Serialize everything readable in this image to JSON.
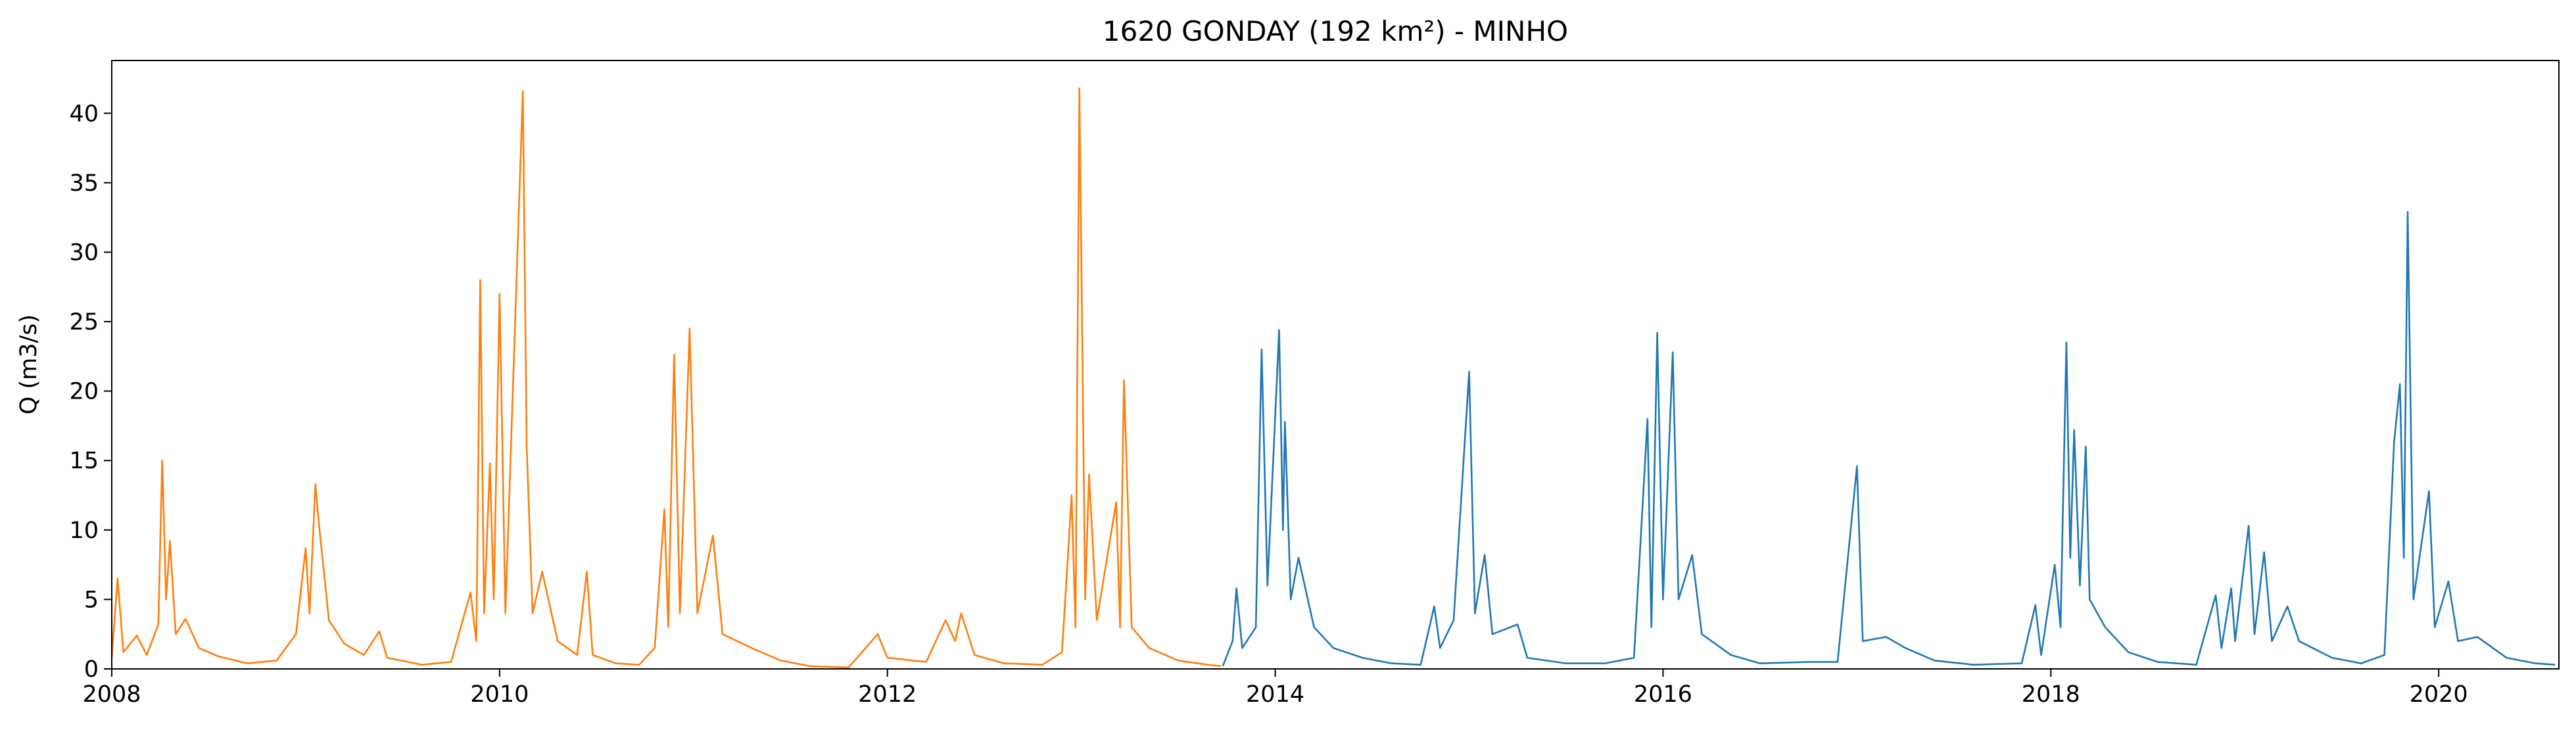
{
  "chart_data": {
    "type": "line",
    "title": "1620 GONDAY (192 km²) - MINHO",
    "ylabel": "Q (m3/s)",
    "xlim": [
      2008,
      2020.62
    ],
    "xticks": [
      2008,
      2010,
      2012,
      2014,
      2016,
      2018,
      2020
    ],
    "ylim": [
      0,
      43.8
    ],
    "yticks": [
      0,
      5,
      10,
      15,
      20,
      25,
      30,
      35,
      40
    ],
    "series": [
      {
        "color": "#ff7f0e",
        "x": [
          2008.0,
          2008.03,
          2008.06,
          2008.13,
          2008.18,
          2008.24,
          2008.26,
          2008.28,
          2008.3,
          2008.33,
          2008.38,
          2008.45,
          2008.55,
          2008.7,
          2008.85,
          2008.95,
          2009.0,
          2009.02,
          2009.05,
          2009.07,
          2009.12,
          2009.2,
          2009.3,
          2009.38,
          2009.42,
          2009.6,
          2009.75,
          2009.85,
          2009.88,
          2009.9,
          2009.92,
          2009.95,
          2009.97,
          2010.0,
          2010.03,
          2010.12,
          2010.14,
          2010.17,
          2010.22,
          2010.3,
          2010.4,
          2010.45,
          2010.48,
          2010.6,
          2010.72,
          2010.8,
          2010.85,
          2010.87,
          2010.9,
          2010.93,
          2010.98,
          2011.02,
          2011.1,
          2011.15,
          2011.3,
          2011.45,
          2011.6,
          2011.8,
          2011.95,
          2012.0,
          2012.2,
          2012.3,
          2012.35,
          2012.38,
          2012.45,
          2012.6,
          2012.8,
          2012.9,
          2012.95,
          2012.97,
          2012.99,
          2013.02,
          2013.04,
          2013.08,
          2013.18,
          2013.2,
          2013.22,
          2013.26,
          2013.35,
          2013.5,
          2013.65,
          2013.72
        ],
        "values": [
          0.8,
          6.5,
          1.2,
          2.4,
          1.0,
          3.2,
          15.0,
          5,
          9.2,
          2.5,
          3.6,
          1.5,
          0.9,
          0.4,
          0.6,
          2.5,
          8.7,
          4,
          13.3,
          10.2,
          3.5,
          1.8,
          1.0,
          2.7,
          0.8,
          0.3,
          0.5,
          5.5,
          2,
          28.0,
          4,
          14.8,
          5,
          27.0,
          4,
          41.6,
          16,
          4,
          7.0,
          2.0,
          1.0,
          7.0,
          1,
          0.4,
          0.3,
          1.5,
          11.5,
          3,
          22.6,
          4,
          24.5,
          4,
          9.6,
          2.5,
          1.5,
          0.6,
          0.2,
          0.1,
          2.5,
          0.8,
          0.5,
          3.5,
          2,
          4.0,
          1.0,
          0.4,
          0.3,
          1.2,
          12.5,
          3,
          41.8,
          5,
          14.0,
          3.5,
          12.0,
          3,
          20.8,
          3,
          1.5,
          0.6,
          0.3,
          0.2
        ]
      },
      {
        "color": "#1f77b4",
        "x": [
          2013.73,
          2013.78,
          2013.8,
          2013.83,
          2013.9,
          2013.93,
          2013.96,
          2014.02,
          2014.04,
          2014.05,
          2014.08,
          2014.12,
          2014.2,
          2014.3,
          2014.45,
          2014.6,
          2014.75,
          2014.82,
          2014.85,
          2014.92,
          2015.0,
          2015.03,
          2015.08,
          2015.12,
          2015.25,
          2015.3,
          2015.5,
          2015.7,
          2015.85,
          2015.92,
          2015.94,
          2015.97,
          2016.0,
          2016.05,
          2016.08,
          2016.15,
          2016.2,
          2016.35,
          2016.5,
          2016.75,
          2016.9,
          2017.0,
          2017.03,
          2017.15,
          2017.25,
          2017.4,
          2017.6,
          2017.85,
          2017.92,
          2017.95,
          2018.02,
          2018.05,
          2018.08,
          2018.1,
          2018.12,
          2018.15,
          2018.18,
          2018.2,
          2018.28,
          2018.4,
          2018.55,
          2018.75,
          2018.85,
          2018.88,
          2018.93,
          2018.95,
          2019.02,
          2019.05,
          2019.1,
          2019.14,
          2019.22,
          2019.28,
          2019.45,
          2019.6,
          2019.72,
          2019.77,
          2019.8,
          2019.82,
          2019.84,
          2019.87,
          2019.95,
          2019.98,
          2020.05,
          2020.1,
          2020.2,
          2020.35,
          2020.5,
          2020.6
        ],
        "values": [
          0.2,
          2.0,
          5.8,
          1.5,
          3,
          23.0,
          6,
          24.4,
          10,
          17.8,
          5,
          8.0,
          3.0,
          1.5,
          0.8,
          0.4,
          0.3,
          4.5,
          1.5,
          3.5,
          21.4,
          4,
          8.2,
          2.5,
          3.2,
          0.8,
          0.4,
          0.4,
          0.8,
          18.0,
          3,
          24.2,
          5,
          22.8,
          5,
          8.2,
          2.5,
          1,
          0.4,
          0.5,
          0.5,
          14.6,
          2,
          2.3,
          1.5,
          0.6,
          0.3,
          0.4,
          4.6,
          1,
          7.5,
          3,
          23.5,
          8,
          17.2,
          6,
          16.0,
          5,
          3,
          1.2,
          0.5,
          0.3,
          5.3,
          1.5,
          5.8,
          2,
          10.3,
          2.5,
          8.4,
          2,
          4.5,
          2,
          0.8,
          0.4,
          1,
          16.3,
          20.5,
          8,
          32.9,
          5,
          12.8,
          3,
          6.3,
          2,
          2.3,
          0.8,
          0.4,
          0.3
        ]
      }
    ]
  }
}
